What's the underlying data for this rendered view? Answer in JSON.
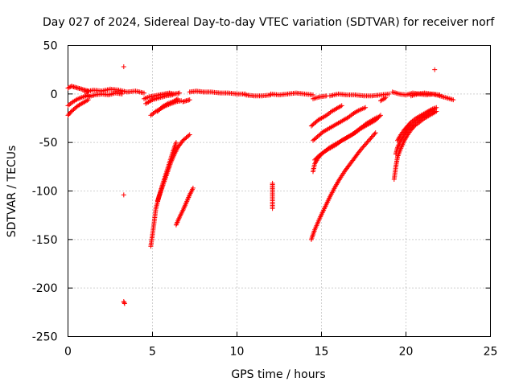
{
  "chart_data": {
    "type": "scatter",
    "title": "Day 027 of 2024, Sidereal Day-to-day VTEC variation (SDTVAR) for receiver norf",
    "xlabel": "GPS time / hours",
    "ylabel": "SDTVAR / TECUs",
    "xlim": [
      0,
      25
    ],
    "ylim": [
      -250,
      50
    ],
    "xticks": [
      0,
      5,
      10,
      15,
      20,
      25
    ],
    "yticks": [
      -250,
      -200,
      -150,
      -100,
      -50,
      0,
      50
    ],
    "grid": true,
    "marker": "plus",
    "color": "#ff0000",
    "segments": [
      {
        "x": [
          0.0,
          0.2,
          0.4,
          0.6,
          0.8,
          1.0,
          1.2
        ],
        "y": [
          6,
          8,
          7,
          6,
          5,
          4,
          3
        ]
      },
      {
        "x": [
          0.0,
          0.3,
          0.6,
          0.9,
          1.2
        ],
        "y": [
          -12,
          -8,
          -5,
          -3,
          -1
        ]
      },
      {
        "x": [
          0.0,
          0.2,
          0.4,
          0.6,
          0.8,
          1.0,
          1.2
        ],
        "y": [
          -22,
          -18,
          -15,
          -12,
          -10,
          -8,
          -6
        ]
      },
      {
        "x": [
          1.0,
          1.5,
          2.0,
          2.5,
          3.0,
          3.5,
          4.0,
          4.5
        ],
        "y": [
          2,
          4,
          3,
          5,
          4,
          2,
          3,
          1
        ]
      },
      {
        "x": [
          1.2,
          1.6,
          2.0,
          2.4,
          2.8,
          3.2
        ],
        "y": [
          -3,
          -1,
          0,
          -1,
          1,
          0
        ]
      },
      {
        "x": [
          3.3
        ],
        "y": [
          28
        ]
      },
      {
        "x": [
          3.3
        ],
        "y": [
          -104
        ]
      },
      {
        "x": [
          3.3,
          3.35
        ],
        "y": [
          -214,
          -216
        ]
      },
      {
        "x": [
          4.5,
          4.8,
          5.1,
          5.4,
          5.7,
          6.0,
          6.3,
          6.6
        ],
        "y": [
          -5,
          -3,
          -2,
          -1,
          0,
          1,
          0,
          1
        ]
      },
      {
        "x": [
          4.6,
          5.0,
          5.4,
          5.8,
          6.2
        ],
        "y": [
          -10,
          -6,
          -4,
          -2,
          -1
        ]
      },
      {
        "x": [
          4.9,
          5.2,
          5.5,
          5.8,
          6.1,
          6.4,
          6.7
        ],
        "y": [
          -22,
          -18,
          -15,
          -12,
          -10,
          -8,
          -7
        ]
      },
      {
        "x": [
          5.3,
          5.6,
          5.9,
          6.2,
          6.5
        ],
        "y": [
          -18,
          -13,
          -10,
          -8,
          -5
        ]
      },
      {
        "x": [
          6.8,
          7.0,
          7.2
        ],
        "y": [
          -8,
          -7,
          -6
        ]
      },
      {
        "x": [
          4.9,
          5.0,
          5.1,
          5.2,
          5.4,
          5.6,
          5.8,
          6.0,
          6.2,
          6.4
        ],
        "y": [
          -157,
          -145,
          -132,
          -118,
          -105,
          -93,
          -82,
          -71,
          -60,
          -50
        ]
      },
      {
        "x": [
          5.3,
          5.5,
          5.7,
          5.9,
          6.1,
          6.3,
          6.5,
          6.8,
          7.0,
          7.2
        ],
        "y": [
          -110,
          -100,
          -90,
          -80,
          -70,
          -62,
          -55,
          -48,
          -45,
          -42
        ]
      },
      {
        "x": [
          6.4,
          6.6,
          6.8,
          7.0,
          7.2,
          7.4
        ],
        "y": [
          -135,
          -127,
          -120,
          -112,
          -104,
          -97
        ]
      },
      {
        "x": [
          7.2,
          7.6,
          8.0,
          8.5,
          9.0,
          9.5,
          10.0,
          10.5
        ],
        "y": [
          2,
          3,
          2,
          2,
          1,
          1,
          0,
          0
        ]
      },
      {
        "x": [
          10.5,
          11.0,
          11.5,
          12.0
        ],
        "y": [
          -1,
          -2,
          -2,
          -1
        ]
      },
      {
        "x": [
          12.0,
          12.5,
          13.0,
          13.5,
          14.0,
          14.5
        ],
        "y": [
          0,
          -1,
          0,
          1,
          0,
          -1
        ]
      },
      {
        "x": [
          14.5,
          14.9,
          15.3
        ],
        "y": [
          -5,
          -3,
          -2
        ]
      },
      {
        "x": [
          12.1,
          12.1,
          12.1
        ],
        "y": [
          -92,
          -99,
          -118
        ]
      },
      {
        "x": [
          14.4,
          14.6,
          14.8,
          15.0,
          15.3,
          15.6,
          15.9,
          16.2
        ],
        "y": [
          -33,
          -30,
          -27,
          -25,
          -22,
          -18,
          -15,
          -12
        ]
      },
      {
        "x": [
          14.5,
          14.7,
          14.9,
          15.1,
          15.4,
          15.7,
          16.0,
          16.3,
          16.6,
          16.9,
          17.2,
          17.6
        ],
        "y": [
          -48,
          -45,
          -42,
          -39,
          -36,
          -33,
          -30,
          -27,
          -24,
          -20,
          -17,
          -14
        ]
      },
      {
        "x": [
          14.5,
          14.6,
          14.8,
          15.0,
          15.3,
          15.6,
          15.9,
          16.2,
          16.5,
          16.8,
          17.1,
          17.4,
          17.7,
          18.0,
          18.3
        ],
        "y": [
          -80,
          -72,
          -66,
          -62,
          -58,
          -55,
          -52,
          -48,
          -45,
          -42,
          -38,
          -34,
          -30,
          -27,
          -24
        ]
      },
      {
        "x": [
          14.6,
          14.9,
          15.2,
          15.5,
          15.8,
          16.1,
          16.4,
          16.7,
          17.0,
          17.3,
          17.6,
          17.9,
          18.2,
          18.5
        ],
        "y": [
          -68,
          -63,
          -59,
          -55,
          -52,
          -49,
          -46,
          -43,
          -40,
          -36,
          -33,
          -30,
          -27,
          -22
        ]
      },
      {
        "x": [
          14.4,
          14.6,
          14.9,
          15.2,
          15.5,
          15.8,
          16.1,
          16.4,
          16.7,
          17.0,
          17.3,
          17.6,
          17.9,
          18.2
        ],
        "y": [
          -150,
          -140,
          -128,
          -117,
          -106,
          -96,
          -87,
          -79,
          -72,
          -65,
          -58,
          -52,
          -46,
          -40
        ]
      },
      {
        "x": [
          15.5,
          16.0,
          16.5,
          17.0,
          17.5,
          18.0,
          18.5,
          19.0
        ],
        "y": [
          -2,
          0,
          -1,
          -1,
          -2,
          -2,
          -1,
          0
        ]
      },
      {
        "x": [
          18.5,
          18.8
        ],
        "y": [
          -7,
          -4
        ]
      },
      {
        "x": [
          19.2,
          19.6,
          20.0,
          20.4,
          20.8,
          21.2,
          21.6,
          22.0,
          22.4,
          22.8
        ],
        "y": [
          2,
          0,
          -1,
          1,
          0,
          -1,
          0,
          -2,
          -4,
          -6
        ]
      },
      {
        "x": [
          20.3,
          20.7,
          21.1,
          21.5,
          22.0
        ],
        "y": [
          -2,
          0,
          1,
          0,
          -1
        ]
      },
      {
        "x": [
          21.7
        ],
        "y": [
          25
        ]
      },
      {
        "x": [
          19.3,
          19.4,
          19.5,
          19.7,
          19.9,
          20.1,
          20.3,
          20.5,
          20.8,
          21.1,
          21.4,
          21.8
        ],
        "y": [
          -88,
          -75,
          -65,
          -56,
          -48,
          -42,
          -37,
          -33,
          -29,
          -25,
          -22,
          -18
        ]
      },
      {
        "x": [
          19.4,
          19.5,
          19.7,
          19.9,
          20.1,
          20.3,
          20.5,
          20.8,
          21.1,
          21.4,
          21.7
        ],
        "y": [
          -62,
          -55,
          -48,
          -42,
          -37,
          -33,
          -30,
          -26,
          -23,
          -20,
          -16
        ]
      },
      {
        "x": [
          19.5,
          19.7,
          19.9,
          20.1,
          20.3,
          20.6,
          20.9,
          21.2,
          21.5,
          21.8
        ],
        "y": [
          -48,
          -42,
          -37,
          -33,
          -29,
          -25,
          -22,
          -19,
          -16,
          -14
        ]
      }
    ]
  }
}
